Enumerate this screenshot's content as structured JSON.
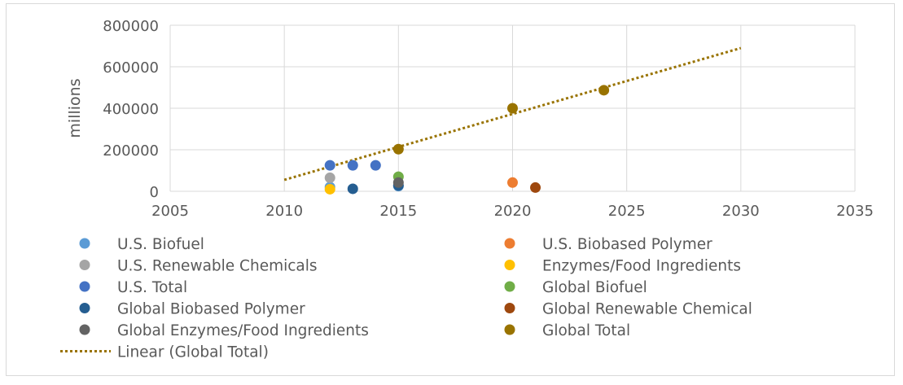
{
  "chart_data": {
    "type": "scatter",
    "title": "",
    "xlabel": "",
    "ylabel": "millions",
    "xlim": [
      2005,
      2035
    ],
    "ylim": [
      0,
      800000
    ],
    "x_ticks": [
      "2005",
      "2010",
      "2015",
      "2020",
      "2025",
      "2030",
      "2035"
    ],
    "y_ticks": [
      "0",
      "200000",
      "400000",
      "600000",
      "800000"
    ],
    "grid": true,
    "legend_position": "bottom",
    "series": [
      {
        "name": "U.S. Biofuel",
        "color": "#5b9bd5",
        "points": [
          [
            2012,
            20000
          ],
          [
            2015,
            25000
          ]
        ]
      },
      {
        "name": "U.S. Biobased Polymer",
        "color": "#ed7d31",
        "points": [
          [
            2020,
            42000
          ]
        ]
      },
      {
        "name": "U.S. Renewable Chemicals",
        "color": "#a5a5a5",
        "points": [
          [
            2012,
            65000
          ]
        ]
      },
      {
        "name": "Enzymes/Food Ingredients",
        "color": "#ffc000",
        "points": [
          [
            2012,
            10000
          ]
        ]
      },
      {
        "name": "U.S. Total",
        "color": "#4472c4",
        "points": [
          [
            2012,
            125000
          ],
          [
            2013,
            125000
          ],
          [
            2014,
            125000
          ]
        ]
      },
      {
        "name": "Global Biofuel",
        "color": "#70ad47",
        "points": [
          [
            2015,
            70000
          ]
        ]
      },
      {
        "name": "Global Biobased Polymer",
        "color": "#255e91",
        "points": [
          [
            2013,
            12000
          ],
          [
            2015,
            28000
          ]
        ]
      },
      {
        "name": "Global Renewable Chemical",
        "color": "#9e480e",
        "points": [
          [
            2021,
            18000
          ]
        ]
      },
      {
        "name": "Global Enzymes/Food Ingredients",
        "color": "#636363",
        "points": [
          [
            2015,
            42000
          ]
        ]
      },
      {
        "name": "Global Total",
        "color": "#997300",
        "points": [
          [
            2015,
            203000
          ],
          [
            2020,
            400000
          ],
          [
            2024,
            487000
          ]
        ]
      }
    ],
    "trendline": {
      "name": "Linear (Global Total)",
      "color": "#997300",
      "style": "dotted",
      "x_range": [
        2010,
        2030
      ],
      "y_range": [
        55000,
        690000
      ]
    }
  }
}
